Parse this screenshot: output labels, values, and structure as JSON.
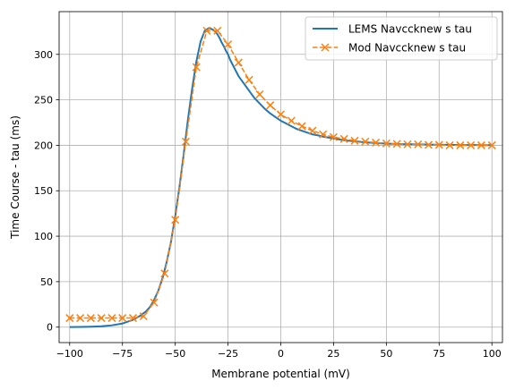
{
  "chart_data": {
    "type": "line",
    "xlabel": "Membrane potential (mV)",
    "ylabel": "Time Course - tau (ms)",
    "xlim": [
      -105,
      105
    ],
    "ylim": [
      -17,
      347
    ],
    "xticks": [
      -100,
      -75,
      -50,
      -25,
      0,
      25,
      50,
      75,
      100
    ],
    "xtick_labels": [
      "−100",
      "−75",
      "−50",
      "−25",
      "0",
      "25",
      "50",
      "75",
      "100"
    ],
    "yticks": [
      0,
      50,
      100,
      150,
      200,
      250,
      300
    ],
    "ytick_labels": [
      "0",
      "50",
      "100",
      "150",
      "200",
      "250",
      "300"
    ],
    "grid": true,
    "legend_position": "upper-right",
    "colors": {
      "lems": "#1f77b4",
      "mod": "#ff7f0e"
    },
    "series": [
      {
        "name": "LEMS Navccknew s tau",
        "style": "solid-line",
        "x": [
          -100,
          -95,
          -90,
          -85,
          -80,
          -75,
          -70,
          -67,
          -64,
          -62,
          -60,
          -58,
          -56,
          -54,
          -52,
          -50,
          -48,
          -46,
          -44,
          -42,
          -40,
          -38,
          -36,
          -34,
          -33,
          -32,
          -31,
          -30,
          -29,
          -28,
          -27,
          -26,
          -25,
          -24,
          -22,
          -20,
          -17.5,
          -15,
          -12.5,
          -10,
          -7.5,
          -5,
          -2.5,
          0,
          2.5,
          5,
          7.5,
          10,
          12.5,
          15,
          17.5,
          20,
          22.5,
          25,
          27.5,
          30,
          32.5,
          35,
          37.5,
          40,
          42.5,
          45,
          47.5,
          50,
          52.5,
          55,
          57.5,
          60,
          62.5,
          65,
          67.5,
          70,
          72.5,
          75,
          77.5,
          80,
          82.5,
          85,
          87.5,
          90,
          92.5,
          95,
          97.5,
          100
        ],
        "y": [
          0.1,
          0.2,
          0.5,
          1,
          2,
          4,
          8,
          12,
          17,
          22,
          30,
          40,
          54,
          72,
          94,
          122,
          154,
          190,
          228,
          262,
          292,
          314,
          326,
          329,
          328,
          327,
          325,
          322,
          318,
          313,
          309,
          304,
          300,
          294,
          285,
          276,
          268,
          260,
          252,
          246,
          240,
          235,
          231,
          227,
          224,
          221,
          218,
          216,
          214,
          212,
          211,
          209.5,
          208.5,
          207.5,
          206.5,
          205.6,
          204.9,
          204.3,
          203.8,
          203.3,
          202.9,
          202.5,
          202.2,
          201.9,
          201.7,
          201.5,
          201.3,
          201.2,
          201.1,
          201.0,
          200.9,
          200.8,
          200.7,
          200.6,
          200.5,
          200.5,
          200.4,
          200.4,
          200.3,
          200.3,
          200.3,
          200.2,
          200.2,
          200.2
        ]
      },
      {
        "name": "Mod Navccknew s tau",
        "style": "dashed-line-x-markers",
        "x": [
          -100,
          -95,
          -90,
          -85,
          -80,
          -75,
          -70,
          -65,
          -60,
          -55,
          -50,
          -45,
          -40,
          -35,
          -30,
          -25,
          -20,
          -15,
          -10,
          -5,
          0,
          5,
          10,
          15,
          20,
          25,
          30,
          35,
          40,
          45,
          50,
          55,
          60,
          65,
          70,
          75,
          80,
          85,
          90,
          95,
          100
        ],
        "y": [
          10,
          10,
          10,
          10,
          10,
          10,
          10,
          12,
          27,
          59,
          118,
          204,
          286,
          326,
          326,
          311,
          291,
          272,
          256,
          244,
          234,
          227,
          221,
          216,
          212,
          209,
          207,
          205,
          204,
          203,
          202,
          201.5,
          201,
          201,
          200.5,
          200.5,
          200,
          200,
          200,
          200,
          200
        ]
      }
    ]
  }
}
